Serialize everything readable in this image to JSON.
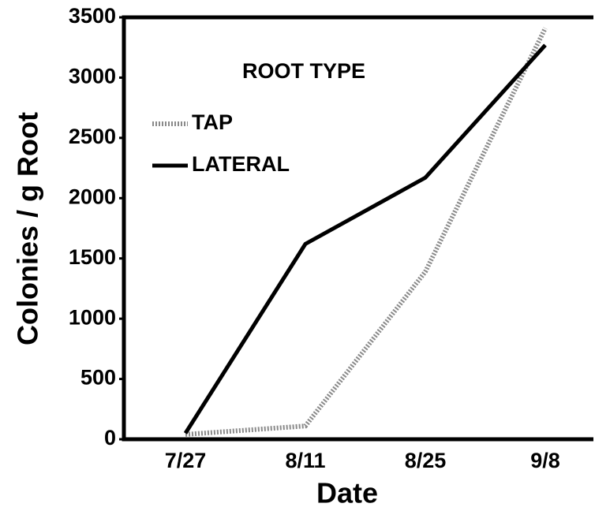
{
  "chart_data": {
    "type": "line",
    "x_label": "Date",
    "y_label": "Colonies / g Root",
    "categories": [
      "7/27",
      "8/11",
      "8/25",
      "9/8"
    ],
    "legend_title": "ROOT TYPE",
    "series": [
      {
        "name": "TAP",
        "color": "#8a8a8a",
        "style": "dotted",
        "values": [
          40,
          110,
          1390,
          3410
        ]
      },
      {
        "name": "LATERAL",
        "color": "#000000",
        "style": "solid",
        "values": [
          50,
          1620,
          2170,
          3270
        ]
      }
    ],
    "ylim": [
      0,
      3500
    ],
    "yticks": [
      0,
      500,
      1000,
      1500,
      2000,
      2500,
      3000,
      3500
    ]
  }
}
